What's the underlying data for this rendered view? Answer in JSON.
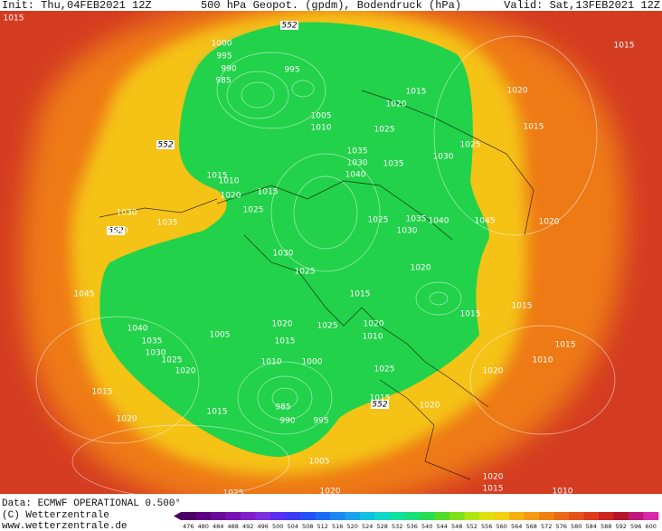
{
  "header": {
    "init": "Init: Thu,04FEB2021 12Z",
    "title": "500 hPa Geopot. (gpdm), Bodendruck (hPa)",
    "valid": "Valid: Sat,13FEB2021 12Z"
  },
  "footer": {
    "data": "Data: ECMWF OPERATIONAL 0.500°",
    "copyright": "(C) Wetterzentrale",
    "url": "www.wetterzentrale.de"
  },
  "map": {
    "contour_labels": [
      "552",
      "552",
      "552",
      "552"
    ],
    "isobar_labels": [
      "1015",
      "1015",
      "1000",
      "995",
      "990",
      "985",
      "995",
      "1005",
      "1010",
      "1020",
      "1015",
      "1025",
      "1020",
      "1015",
      "1035",
      "1030",
      "1040",
      "1035",
      "1030",
      "1025",
      "1015",
      "1010",
      "1015",
      "1020",
      "1025",
      "1030",
      "1035",
      "1040",
      "1025",
      "1035",
      "1040",
      "1030",
      "1045",
      "1045",
      "1030",
      "1025",
      "1020",
      "1015",
      "1015",
      "1040",
      "1035",
      "1030",
      "1025",
      "1020",
      "1005",
      "1015",
      "1020",
      "1025",
      "1010",
      "1020",
      "1000",
      "1025",
      "1010",
      "1015",
      "1020",
      "1015",
      "985",
      "990",
      "995",
      "1015",
      "1020",
      "1020",
      "1010",
      "1015",
      "1005",
      "1020",
      "1025",
      "1020",
      "1015",
      "1010",
      "1015",
      "1020"
    ]
  },
  "colorbar": {
    "ticks": [
      476,
      480,
      484,
      488,
      492,
      496,
      500,
      504,
      508,
      512,
      516,
      520,
      524,
      528,
      532,
      536,
      540,
      544,
      548,
      552,
      556,
      560,
      564,
      568,
      572,
      576,
      580,
      584,
      588,
      592,
      596,
      600
    ],
    "colors": [
      "#4b0066",
      "#5c0080",
      "#6a0a99",
      "#7512b3",
      "#7f1fcc",
      "#7a2ee0",
      "#5a2ef0",
      "#3a3af5",
      "#2450f5",
      "#1a6cf5",
      "#1a88f0",
      "#14a4ea",
      "#10c0e0",
      "#10d8c8",
      "#10e0a0",
      "#18e078",
      "#28dc50",
      "#50dc28",
      "#80e018",
      "#b0e410",
      "#e0e010",
      "#f5d010",
      "#f5b010",
      "#f59a10",
      "#f08010",
      "#ea6a14",
      "#e45218",
      "#dc3c1c",
      "#cc2420",
      "#b41428",
      "#c0187a",
      "#d82aa8"
    ]
  }
}
